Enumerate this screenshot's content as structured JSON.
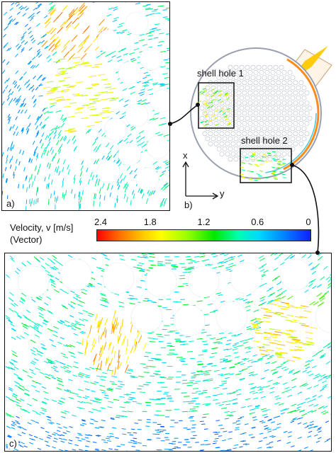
{
  "panels": {
    "a": {
      "label": "a)"
    },
    "b": {
      "label": "b)",
      "shell_hole_1": "shell hole 1",
      "shell_hole_2": "shell hole 2",
      "axis_x": "x",
      "axis_y": "y"
    },
    "c": {
      "label": "c)"
    }
  },
  "colorbar": {
    "title_line1": "Velocity, v [m/s]",
    "title_line2": "(Vector)",
    "ticks": [
      "2.4",
      "1.8",
      "1.2",
      "0.6",
      "0"
    ],
    "tick_values": [
      2.4,
      1.8,
      1.2,
      0.6,
      0
    ],
    "range": [
      0,
      2.4
    ],
    "colors": [
      "#ff0000",
      "#ffcc00",
      "#00e800",
      "#00d8ff",
      "#1020ff"
    ]
  }
}
